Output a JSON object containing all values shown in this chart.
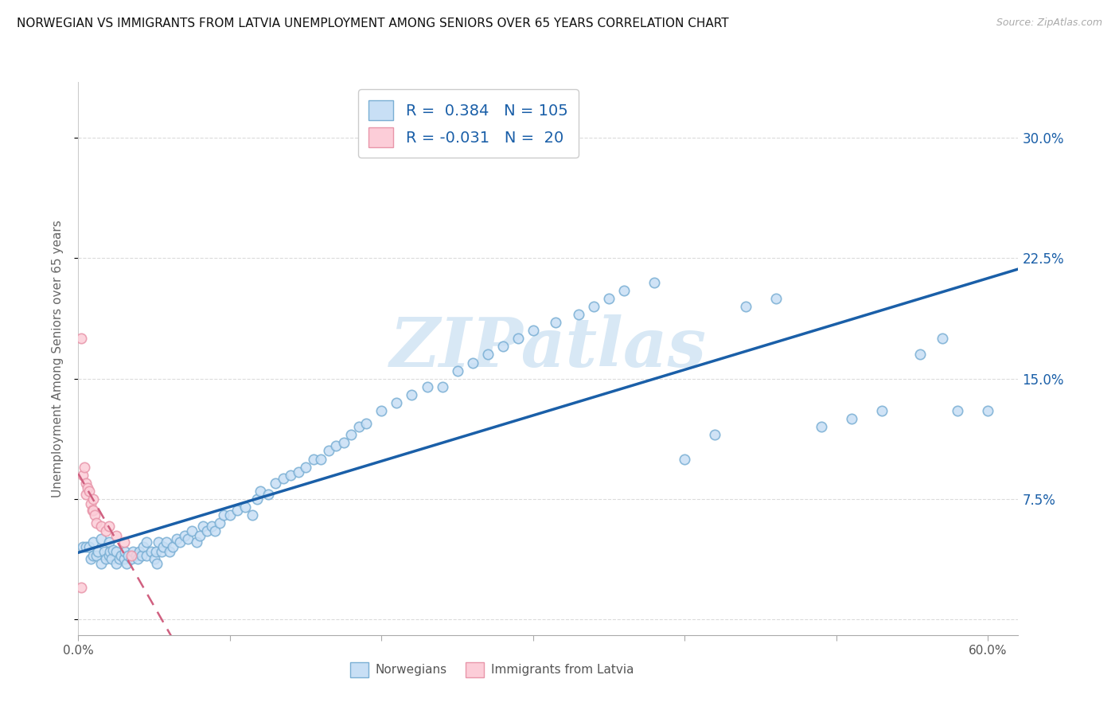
{
  "title": "NORWEGIAN VS IMMIGRANTS FROM LATVIA UNEMPLOYMENT AMONG SENIORS OVER 65 YEARS CORRELATION CHART",
  "source": "Source: ZipAtlas.com",
  "ylabel": "Unemployment Among Seniors over 65 years",
  "xlim": [
    0.0,
    0.62
  ],
  "ylim": [
    -0.01,
    0.335
  ],
  "xticks": [
    0.0,
    0.1,
    0.2,
    0.3,
    0.4,
    0.5,
    0.6
  ],
  "xticklabels": [
    "0.0%",
    "",
    "",
    "",
    "",
    "",
    "60.0%"
  ],
  "yticks": [
    0.0,
    0.075,
    0.15,
    0.225,
    0.3
  ],
  "yticklabels_right": [
    "",
    "7.5%",
    "15.0%",
    "22.5%",
    "30.0%"
  ],
  "norwegian_face_color": "#c8dff5",
  "norwegian_edge_color": "#7aafd4",
  "latvian_face_color": "#fccdd8",
  "latvian_edge_color": "#e896aa",
  "norwegian_line_color": "#1a5fa8",
  "latvian_line_color": "#d06080",
  "r_color": "#1a5fa8",
  "watermark_color": "#d8e8f5",
  "background_color": "#ffffff",
  "r_norwegian": 0.384,
  "n_norwegian": 105,
  "r_latvian": -0.031,
  "n_latvian": 20,
  "nor_x": [
    0.003,
    0.005,
    0.007,
    0.008,
    0.01,
    0.01,
    0.012,
    0.013,
    0.015,
    0.015,
    0.017,
    0.018,
    0.02,
    0.02,
    0.021,
    0.022,
    0.023,
    0.025,
    0.025,
    0.027,
    0.028,
    0.03,
    0.031,
    0.032,
    0.033,
    0.035,
    0.036,
    0.038,
    0.039,
    0.04,
    0.042,
    0.043,
    0.045,
    0.045,
    0.048,
    0.05,
    0.051,
    0.052,
    0.053,
    0.055,
    0.056,
    0.058,
    0.06,
    0.062,
    0.065,
    0.067,
    0.07,
    0.072,
    0.075,
    0.078,
    0.08,
    0.082,
    0.085,
    0.088,
    0.09,
    0.093,
    0.096,
    0.1,
    0.105,
    0.11,
    0.115,
    0.118,
    0.12,
    0.125,
    0.13,
    0.135,
    0.14,
    0.145,
    0.15,
    0.155,
    0.16,
    0.165,
    0.17,
    0.175,
    0.18,
    0.185,
    0.19,
    0.2,
    0.21,
    0.22,
    0.23,
    0.24,
    0.25,
    0.26,
    0.27,
    0.28,
    0.29,
    0.3,
    0.315,
    0.33,
    0.34,
    0.35,
    0.36,
    0.38,
    0.4,
    0.42,
    0.44,
    0.46,
    0.49,
    0.51,
    0.53,
    0.555,
    0.57,
    0.58,
    0.6
  ],
  "nor_y": [
    0.045,
    0.045,
    0.045,
    0.038,
    0.04,
    0.048,
    0.04,
    0.042,
    0.035,
    0.05,
    0.042,
    0.038,
    0.04,
    0.048,
    0.042,
    0.038,
    0.043,
    0.035,
    0.042,
    0.038,
    0.04,
    0.038,
    0.042,
    0.035,
    0.04,
    0.038,
    0.042,
    0.04,
    0.038,
    0.042,
    0.04,
    0.045,
    0.04,
    0.048,
    0.042,
    0.038,
    0.042,
    0.035,
    0.048,
    0.042,
    0.045,
    0.048,
    0.042,
    0.045,
    0.05,
    0.048,
    0.052,
    0.05,
    0.055,
    0.048,
    0.052,
    0.058,
    0.055,
    0.058,
    0.055,
    0.06,
    0.065,
    0.065,
    0.068,
    0.07,
    0.065,
    0.075,
    0.08,
    0.078,
    0.085,
    0.088,
    0.09,
    0.092,
    0.095,
    0.1,
    0.1,
    0.105,
    0.108,
    0.11,
    0.115,
    0.12,
    0.122,
    0.13,
    0.135,
    0.14,
    0.145,
    0.145,
    0.155,
    0.16,
    0.165,
    0.17,
    0.175,
    0.18,
    0.185,
    0.19,
    0.195,
    0.2,
    0.205,
    0.21,
    0.1,
    0.115,
    0.195,
    0.2,
    0.12,
    0.125,
    0.13,
    0.165,
    0.175,
    0.13,
    0.13
  ],
  "lat_x": [
    0.002,
    0.003,
    0.004,
    0.005,
    0.005,
    0.006,
    0.007,
    0.008,
    0.009,
    0.01,
    0.01,
    0.011,
    0.012,
    0.015,
    0.018,
    0.02,
    0.025,
    0.03,
    0.035,
    0.002
  ],
  "lat_y": [
    0.175,
    0.09,
    0.095,
    0.085,
    0.078,
    0.082,
    0.08,
    0.072,
    0.068,
    0.075,
    0.068,
    0.065,
    0.06,
    0.058,
    0.055,
    0.058,
    0.052,
    0.048,
    0.04,
    0.02
  ]
}
